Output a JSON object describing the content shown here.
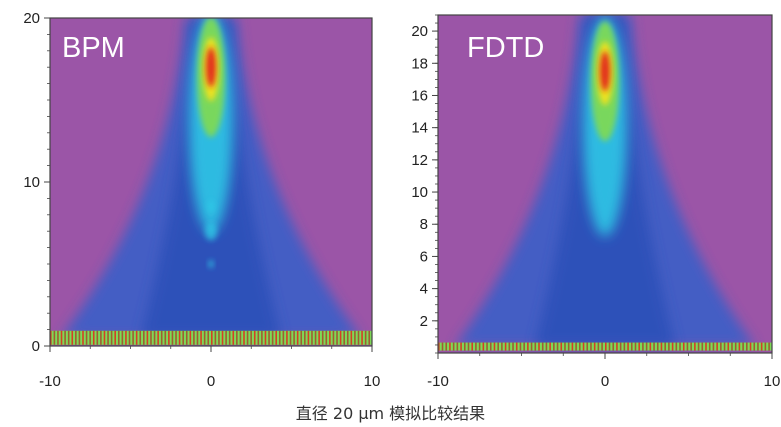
{
  "caption": "直径 20 μm 模拟比较结果",
  "chart_data": [
    {
      "type": "heatmap",
      "title": "BPM",
      "xlim": [
        -10,
        10
      ],
      "ylim": [
        0,
        20
      ],
      "xticks": [
        -10,
        0,
        10
      ],
      "yticks": [
        0,
        10,
        20
      ],
      "x_minor_step": 2.5,
      "y_minor_step": 1,
      "peak": {
        "x": 0,
        "y": 17
      },
      "source_band_y": 0.5,
      "colors": {
        "background": "#9B55A7",
        "low": "#3A5FC8",
        "mid": "#2FC7E6",
        "high_mid": "#7ED957",
        "high": "#F2E21C",
        "peak": "#E2241C"
      }
    },
    {
      "type": "heatmap",
      "title": "FDTD",
      "xlim": [
        -10,
        10
      ],
      "ylim": [
        0,
        21
      ],
      "xticks": [
        -10,
        0,
        10
      ],
      "yticks": [
        2,
        4,
        6,
        8,
        10,
        12,
        14,
        16,
        18,
        20
      ],
      "x_minor_step": 2.5,
      "y_minor_step": 0.5,
      "peak": {
        "x": 0,
        "y": 17.5
      },
      "source_band_y": 0.4,
      "colors": {
        "background": "#9B55A7",
        "low": "#3A5FC8",
        "mid": "#2FC7E6",
        "high_mid": "#7ED957",
        "high": "#F2E21C",
        "peak": "#E2241C"
      }
    }
  ]
}
